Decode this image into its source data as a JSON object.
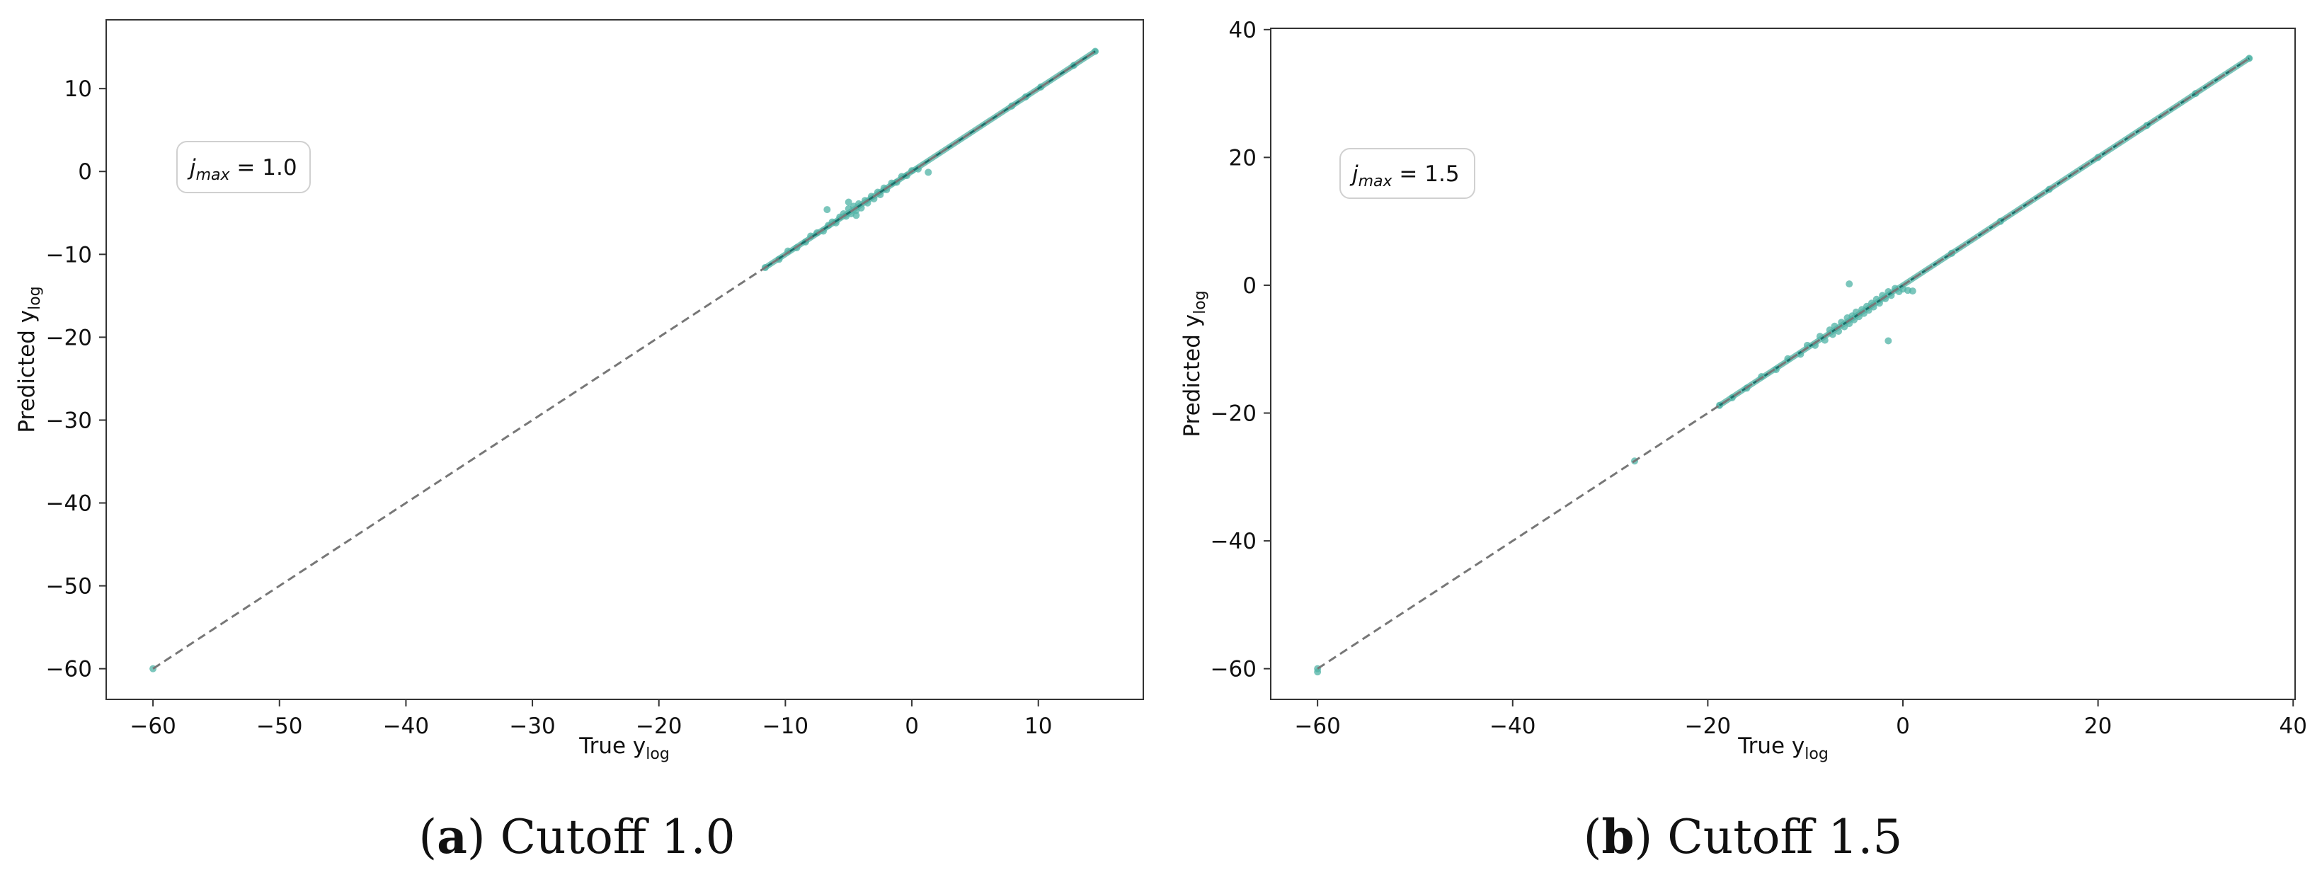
{
  "chart_data": [
    {
      "type": "scatter",
      "panel_letter": "a",
      "caption": "Cutoff 1.0",
      "xlabel": "True y",
      "xlabel_sub": "log",
      "ylabel": "Predicted y",
      "ylabel_sub": "log",
      "xlim": [
        -63.7,
        18.3
      ],
      "ylim": [
        -63.7,
        18.3
      ],
      "xticks": [
        -60,
        -50,
        -40,
        -30,
        -20,
        -10,
        0,
        10
      ],
      "yticks": [
        10,
        0,
        -10,
        -20,
        -30,
        -40,
        -50,
        -60
      ],
      "annotation": {
        "var": "j",
        "sub": "max",
        "rest": " = 1.0"
      },
      "reference_line": {
        "from": [
          -60,
          -60
        ],
        "to": [
          14.5,
          14.5
        ],
        "style": "dashed"
      },
      "point_color": "#4fb3a5",
      "line_color": "#1f6f6a",
      "ref_color": "#777777",
      "series": [
        {
          "x": [
            -60,
            -11.6,
            -10.5,
            -9.8,
            -9.1,
            -8.4,
            -8.0,
            -7.5,
            -7.0,
            -6.6,
            -6.3,
            -6.0,
            -5.7,
            -5.4,
            -5.2,
            -5.0,
            -4.8,
            -4.6,
            -4.4,
            -4.2,
            -4.0,
            -3.7,
            -3.5,
            -3.2,
            -3.0,
            -2.7,
            -2.5,
            -2.2,
            -2.0,
            -1.6,
            -1.2,
            -0.8,
            -0.4,
            0.0,
            0.5,
            1.3,
            -6.7,
            -5.0,
            -4.4,
            7.9,
            9.0,
            10.2,
            12.8,
            14.5
          ],
          "y": [
            -60,
            -11.6,
            -10.6,
            -9.6,
            -9.2,
            -8.5,
            -7.8,
            -7.4,
            -7.2,
            -6.5,
            -6.1,
            -6.2,
            -5.5,
            -5.1,
            -5.4,
            -4.5,
            -5.1,
            -4.2,
            -4.7,
            -3.9,
            -4.4,
            -3.5,
            -3.8,
            -3.0,
            -3.3,
            -2.5,
            -2.8,
            -2.0,
            -2.2,
            -1.4,
            -1.3,
            -0.6,
            -0.5,
            0.1,
            0.3,
            -0.1,
            -4.6,
            -3.7,
            -5.3,
            7.9,
            9.0,
            10.2,
            12.8,
            14.5
          ]
        }
      ]
    },
    {
      "type": "scatter",
      "panel_letter": "b",
      "caption": "Cutoff 1.5",
      "xlabel": "True y",
      "xlabel_sub": "log",
      "ylabel": "Predicted y",
      "ylabel_sub": "log",
      "xlim": [
        -64.8,
        40.2
      ],
      "ylim": [
        -64.8,
        40.2
      ],
      "xticks": [
        -60,
        -40,
        -20,
        0,
        20,
        40
      ],
      "yticks": [
        40,
        20,
        0,
        -20,
        -40,
        -60
      ],
      "annotation": {
        "var": "j",
        "sub": "max",
        "rest": " = 1.5"
      },
      "reference_line": {
        "from": [
          -60,
          -60
        ],
        "to": [
          35.5,
          35.5
        ],
        "style": "dashed"
      },
      "point_color": "#4fb3a5",
      "line_color": "#1f6f6a",
      "ref_color": "#777777",
      "series": [
        {
          "x": [
            -60,
            -60,
            -27.5,
            -18.8,
            -17.5,
            -16.0,
            -14.5,
            -13.0,
            -11.8,
            -10.5,
            -9.8,
            -9.0,
            -8.5,
            -8.0,
            -7.5,
            -7.2,
            -7.0,
            -6.6,
            -6.3,
            -6.0,
            -5.7,
            -5.5,
            -5.2,
            -5.0,
            -4.8,
            -4.5,
            -4.2,
            -4.0,
            -3.7,
            -3.5,
            -3.2,
            -3.0,
            -2.7,
            -2.4,
            -2.1,
            -1.8,
            -1.5,
            -1.2,
            -0.8,
            -0.4,
            0.0,
            0.5,
            1.0,
            -5.5,
            -1.5,
            5,
            10,
            15,
            20,
            25,
            30,
            35.5
          ],
          "y": [
            -60,
            -60.5,
            -27.5,
            -18.8,
            -17.6,
            -16.1,
            -14.3,
            -13.2,
            -11.5,
            -10.8,
            -9.4,
            -9.4,
            -8.0,
            -8.6,
            -7.0,
            -7.7,
            -6.4,
            -7.2,
            -5.8,
            -6.5,
            -5.1,
            -6.0,
            -4.8,
            -5.4,
            -4.2,
            -4.9,
            -3.8,
            -4.4,
            -3.3,
            -3.9,
            -2.8,
            -3.4,
            -2.2,
            -2.8,
            -1.6,
            -2.1,
            -1.0,
            -1.6,
            -0.5,
            -1.0,
            -0.6,
            -0.8,
            -0.9,
            0.2,
            -8.7,
            5,
            10,
            15,
            20,
            25,
            30,
            35.5
          ]
        }
      ]
    }
  ]
}
